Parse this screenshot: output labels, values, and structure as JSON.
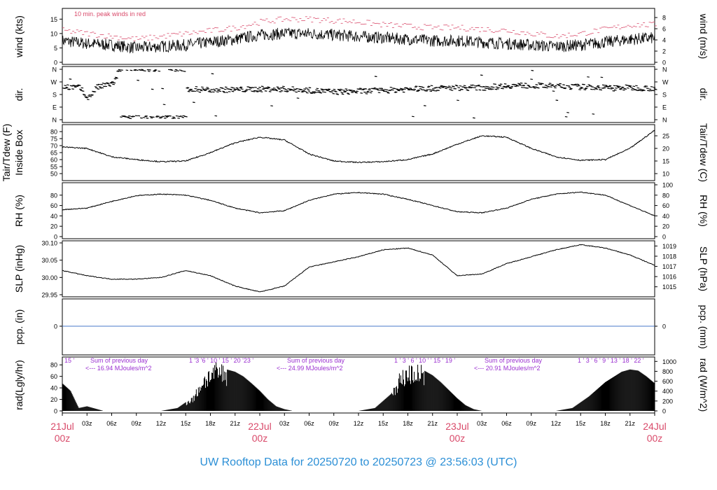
{
  "title": "UW Rooftop Data for 20250720  to  20250723 @ 23:56:03  (UTC)",
  "colors": {
    "title": "#2b8fd6",
    "date": "#d94a6a",
    "peak": "#d94a6a",
    "annot": "#9a2fd0",
    "zero_line": "#4a78c8",
    "trace": "#000000"
  },
  "time_axis": {
    "tick_labels": [
      "03z",
      "06z",
      "09z",
      "12z",
      "15z",
      "18z",
      "21z",
      "03z",
      "06z",
      "09z",
      "12z",
      "15z",
      "18z",
      "21z",
      "03z",
      "06z",
      "09z",
      "12z",
      "15z",
      "18z",
      "21z"
    ],
    "day_labels": [
      {
        "date": "21Jul",
        "hour": "00z"
      },
      {
        "date": "22Jul",
        "hour": "00z"
      },
      {
        "date": "23Jul",
        "hour": "00z"
      },
      {
        "date": "24Jul",
        "hour": "00z"
      }
    ]
  },
  "chart_data": [
    {
      "type": "line",
      "id": "wind",
      "ylabel_left": "wind (kts)",
      "ylabel_right": "wind (m/s)",
      "annotation": "10 min. peak winds in red",
      "ylim": [
        0,
        18
      ],
      "yticks_left": [
        0,
        5,
        10,
        15
      ],
      "yticks_right": [
        0,
        2,
        4,
        6,
        8
      ],
      "x_hours": [
        0,
        3,
        6,
        9,
        12,
        15,
        18,
        21,
        24,
        27,
        30,
        33,
        36,
        39,
        42,
        45,
        48,
        51,
        54,
        57,
        60,
        63,
        66,
        69,
        72
      ],
      "series": [
        {
          "name": "wind",
          "values": [
            7.5,
            6.5,
            6,
            5,
            5.5,
            6,
            7,
            8,
            9.5,
            10,
            10,
            9.5,
            9,
            8.5,
            8,
            7.5,
            7.5,
            7,
            6.5,
            6,
            5.5,
            6,
            7,
            8,
            8.5
          ]
        },
        {
          "name": "10 min. peak",
          "values": [
            11,
            10,
            9,
            8,
            9,
            10,
            11,
            12,
            14,
            15,
            15,
            14.5,
            14,
            13,
            12.5,
            12,
            12,
            11.5,
            11,
            10,
            9,
            10,
            11.5,
            13,
            13
          ]
        }
      ]
    },
    {
      "type": "scatter",
      "id": "dir",
      "ylabel_left": "dir.",
      "ylabel_right": "dir.",
      "yticks": [
        "N",
        "W",
        "S",
        "E",
        "N"
      ],
      "ylim": [
        0,
        360
      ],
      "x_hours": [
        0,
        2,
        3,
        4,
        6,
        7,
        8,
        14,
        15,
        18,
        21,
        24,
        27,
        30,
        33,
        36,
        39,
        42,
        45,
        48,
        51,
        54,
        57,
        60,
        63,
        66,
        69,
        72
      ],
      "values": [
        240,
        230,
        150,
        230,
        260,
        330,
        20,
        230,
        220,
        215,
        215,
        220,
        220,
        210,
        200,
        205,
        210,
        220,
        225,
        230,
        230,
        245,
        245,
        240,
        235,
        230,
        230,
        225
      ]
    },
    {
      "type": "line",
      "id": "temp",
      "ylabel_left": "Tair/Tdew (F)",
      "ylabel_left2": "Inside Box",
      "ylabel_right": "Tair/Tdew (C)",
      "ylim_F": [
        46,
        84
      ],
      "yticks_left": [
        50,
        55,
        60,
        65,
        70,
        75,
        80
      ],
      "yticks_right": [
        10,
        15,
        20,
        25
      ],
      "x_hours": [
        0,
        3,
        6,
        9,
        12,
        15,
        18,
        21,
        24,
        27,
        30,
        33,
        36,
        39,
        42,
        45,
        48,
        51,
        54,
        57,
        60,
        63,
        66,
        69,
        72
      ],
      "values": [
        69,
        68,
        62,
        60,
        58.5,
        59,
        65,
        72,
        76,
        74,
        64,
        59,
        58,
        58.5,
        60,
        64,
        71,
        77,
        76,
        68,
        62,
        59.5,
        60,
        68,
        81
      ]
    },
    {
      "type": "line",
      "id": "rh",
      "ylabel_left": "RH (%)",
      "ylabel_right": "RH (%)",
      "ylim": [
        0,
        100
      ],
      "yticks_left": [
        0,
        20,
        40,
        60,
        80
      ],
      "yticks_right": [
        0,
        20,
        40,
        60,
        80,
        100
      ],
      "x_hours": [
        0,
        3,
        6,
        9,
        12,
        15,
        18,
        21,
        24,
        27,
        30,
        33,
        36,
        39,
        42,
        45,
        48,
        51,
        54,
        57,
        60,
        63,
        66,
        69,
        72
      ],
      "values": [
        52,
        55,
        68,
        79,
        82,
        80,
        70,
        55,
        46,
        50,
        70,
        82,
        85,
        82,
        72,
        60,
        48,
        46,
        55,
        72,
        82,
        86,
        80,
        60,
        40
      ]
    },
    {
      "type": "line",
      "id": "slp",
      "ylabel_left": "SLP (inHg)",
      "ylabel_right": "SLP (hPa)",
      "ylim": [
        29.95,
        30.1
      ],
      "yticks_left": [
        "29.95",
        "30.00",
        "30.05",
        "30.10"
      ],
      "yticks_right": [
        1015,
        1016,
        1017,
        1018,
        1019
      ],
      "x_hours": [
        0,
        3,
        6,
        9,
        12,
        15,
        18,
        21,
        24,
        27,
        30,
        33,
        36,
        39,
        42,
        45,
        48,
        51,
        54,
        57,
        60,
        63,
        66,
        69,
        72
      ],
      "values": [
        30.02,
        30.005,
        29.995,
        29.995,
        30.0,
        30.02,
        30.005,
        29.975,
        29.958,
        29.975,
        30.03,
        30.045,
        30.06,
        30.08,
        30.085,
        30.065,
        30.005,
        30.01,
        30.04,
        30.06,
        30.08,
        30.095,
        30.085,
        30.065,
        30.035
      ]
    },
    {
      "type": "line",
      "id": "pcp",
      "ylabel_left": "pcp. (in)",
      "ylabel_right": "pcp. (mm)",
      "yticks_left": [
        0
      ],
      "yticks_right": [
        0
      ],
      "values": [
        0
      ]
    },
    {
      "type": "area",
      "id": "rad",
      "ylabel_left": "rad(Lgly/hr)",
      "ylabel_right": "rad (W/m^2)",
      "ylim": [
        0,
        90
      ],
      "yticks_left": [
        0,
        20,
        40,
        60,
        80
      ],
      "yticks_right": [
        0,
        200,
        400,
        600,
        800,
        1000
      ],
      "x_hours": [
        0,
        1,
        2,
        3,
        4,
        5,
        12,
        14,
        16,
        17,
        18,
        19,
        20,
        21,
        22,
        23,
        24,
        25,
        26,
        27,
        28,
        36,
        38,
        40,
        41,
        42,
        43,
        44,
        45,
        46,
        47,
        48,
        49,
        50,
        51,
        60,
        62,
        64,
        66,
        68,
        69,
        70,
        71,
        72
      ],
      "values": [
        48,
        35,
        5,
        8,
        4,
        0,
        0,
        5,
        25,
        55,
        70,
        75,
        72,
        68,
        60,
        48,
        35,
        20,
        8,
        3,
        0,
        0,
        5,
        30,
        60,
        72,
        73,
        70,
        62,
        50,
        36,
        22,
        10,
        3,
        0,
        0,
        5,
        25,
        50,
        68,
        72,
        70,
        60,
        48
      ],
      "annotations": [
        {
          "sum_label": "Sum of previous day",
          "total": "<--- 16.94 MJoules/m^2",
          "hours": "15 '",
          "hours_next": "1  '3  '6  ' 10  ' 15  ' 20  '23  '"
        },
        {
          "sum_label": "Sum of previous day",
          "total": "<--- 24.99 MJoules/m^2",
          "hours_next": "1  ' 3  ' 6  ' 10  ' ' 15  ' 19  '"
        },
        {
          "sum_label": "Sum of previous day",
          "total": "<--- 20.91 MJoules/m^2",
          "hours_next": "1  ' 3  ' 6  ' 9  ' 13  ' 18  ' 22  '"
        }
      ]
    }
  ]
}
